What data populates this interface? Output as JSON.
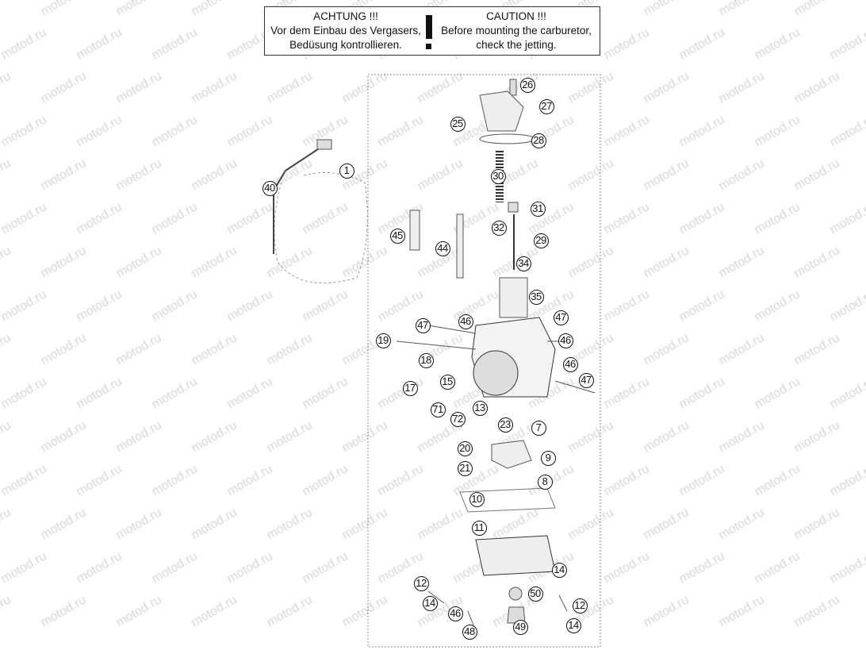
{
  "watermark": "motod.ru",
  "caution_box": {
    "german": {
      "title": "ACHTUNG !!!",
      "line1": "Vor dem Einbau des Vergasers,",
      "line2": "Bedüsung kontrollieren."
    },
    "english": {
      "title": "CAUTION !!!",
      "line1": "Before mounting the carburetor,",
      "line2": "check the jetting."
    }
  },
  "callouts": [
    "26",
    "27",
    "25",
    "28",
    "1",
    "40",
    "30",
    "31",
    "45",
    "32",
    "29",
    "44",
    "34",
    "35",
    "47",
    "46",
    "47",
    "19",
    "46",
    "18",
    "46",
    "47",
    "17",
    "15",
    "71",
    "72",
    "13",
    "23",
    "7",
    "20",
    "9",
    "21",
    "8",
    "10",
    "11",
    "14",
    "12",
    "50",
    "14",
    "12",
    "46",
    "14",
    "48",
    "49"
  ]
}
